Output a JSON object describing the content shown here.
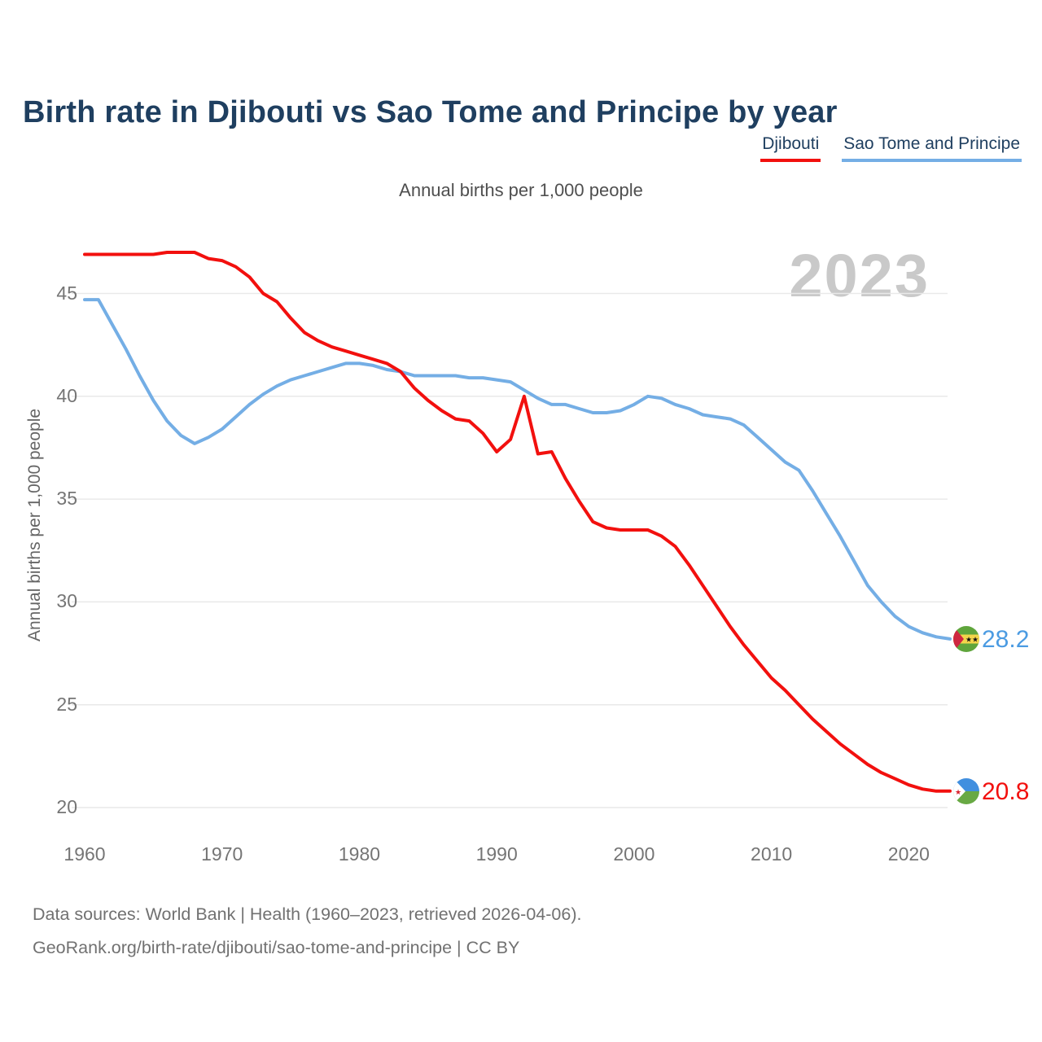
{
  "page": {
    "title": "Birth rate in Djibouti vs Sao Tome and Principe by year",
    "subtitle": "Annual births per 1,000 people",
    "y_axis_label": "Annual births per 1,000 people",
    "watermark": "2023",
    "footer_line1": "Data sources: World Bank | Health (1960–2023, retrieved 2026-04-06).",
    "footer_line2": "GeoRank.org/birth-rate/djibouti/sao-tome-and-principe | CC BY"
  },
  "legend": {
    "items": [
      {
        "label": "Djibouti",
        "color": "#f2100e"
      },
      {
        "label": "Sao Tome and Principe",
        "color": "#74aee5"
      }
    ]
  },
  "colors": {
    "djibouti_line": "#f2100e",
    "sao_tome_line": "#74aee5",
    "title_text": "#1f3f60",
    "grid": "#e9e9e9",
    "tick_text": "#757575",
    "watermark": "#c9c9c9"
  },
  "chart_data": {
    "type": "line",
    "title": "Birth rate in Djibouti vs Sao Tome and Principe by year",
    "ylabel": "Annual births per 1,000 people",
    "xlabel": "",
    "grid": "horizontal-only",
    "legend_position": "top-right",
    "watermark": "2023",
    "x_range": [
      1960,
      2023
    ],
    "ylim": [
      20,
      47.5
    ],
    "xticks": [
      1960,
      1970,
      1980,
      1990,
      2000,
      2010,
      2020
    ],
    "yticks": [
      20,
      25,
      30,
      35,
      40,
      45
    ],
    "years": [
      1960,
      1961,
      1962,
      1963,
      1964,
      1965,
      1966,
      1967,
      1968,
      1969,
      1970,
      1971,
      1972,
      1973,
      1974,
      1975,
      1976,
      1977,
      1978,
      1979,
      1980,
      1981,
      1982,
      1983,
      1984,
      1985,
      1986,
      1987,
      1988,
      1989,
      1990,
      1991,
      1992,
      1993,
      1994,
      1995,
      1996,
      1997,
      1998,
      1999,
      2000,
      2001,
      2002,
      2003,
      2004,
      2005,
      2006,
      2007,
      2008,
      2009,
      2010,
      2011,
      2012,
      2013,
      2014,
      2015,
      2016,
      2017,
      2018,
      2019,
      2020,
      2021,
      2022,
      2023
    ],
    "series": [
      {
        "id": "djibouti",
        "name": "Djibouti",
        "color": "#f2100e",
        "end_label": "20.8",
        "flag": "djibouti",
        "values": [
          46.9,
          46.9,
          46.9,
          46.9,
          46.9,
          46.9,
          47.0,
          47.0,
          47.0,
          46.7,
          46.6,
          46.3,
          45.8,
          45.0,
          44.6,
          43.8,
          43.1,
          42.7,
          42.4,
          42.2,
          42.0,
          41.8,
          41.6,
          41.2,
          40.4,
          39.8,
          39.3,
          38.9,
          38.8,
          38.2,
          37.3,
          37.9,
          40.0,
          37.2,
          37.3,
          36.0,
          34.9,
          33.9,
          33.6,
          33.5,
          33.5,
          33.5,
          33.2,
          32.7,
          31.8,
          30.8,
          29.8,
          28.8,
          27.9,
          27.1,
          26.3,
          25.7,
          25.0,
          24.3,
          23.7,
          23.1,
          22.6,
          22.1,
          21.7,
          21.4,
          21.1,
          20.9,
          20.8,
          20.8
        ]
      },
      {
        "id": "sao-tome-and-principe",
        "name": "Sao Tome and Principe",
        "color": "#74aee5",
        "end_label": "28.2",
        "flag": "sao-tome-and-principe",
        "values": [
          44.7,
          44.7,
          43.5,
          42.3,
          41.0,
          39.8,
          38.8,
          38.1,
          37.7,
          38.0,
          38.4,
          39.0,
          39.6,
          40.1,
          40.5,
          40.8,
          41.0,
          41.2,
          41.4,
          41.6,
          41.6,
          41.5,
          41.3,
          41.2,
          41.0,
          41.0,
          41.0,
          41.0,
          40.9,
          40.9,
          40.8,
          40.7,
          40.3,
          39.9,
          39.6,
          39.6,
          39.4,
          39.2,
          39.2,
          39.3,
          39.6,
          40.0,
          39.9,
          39.6,
          39.4,
          39.1,
          39.0,
          38.9,
          38.6,
          38.0,
          37.4,
          36.8,
          36.4,
          35.4,
          34.3,
          33.2,
          32.0,
          30.8,
          30.0,
          29.3,
          28.8,
          28.5,
          28.3,
          28.2
        ]
      }
    ]
  }
}
